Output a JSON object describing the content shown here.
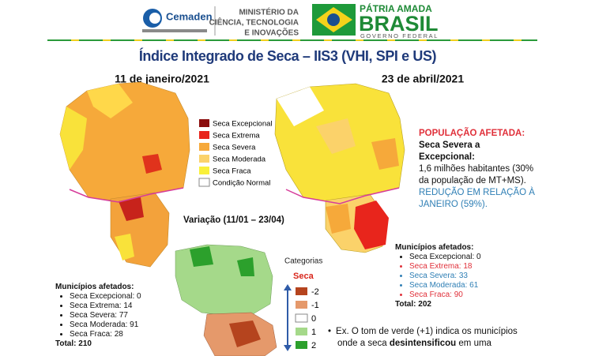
{
  "header": {
    "logo": "Cemaden",
    "ministry": [
      "MINISTÉRIO DA",
      "CIÊNCIA, TECNOLOGIA",
      "E INOVAÇÕES"
    ],
    "slogan": "PÁTRIA AMADA",
    "country": "BRASIL",
    "government": "GOVERNO FEDERAL"
  },
  "title": "Índice Integrado de Seca – IIS3 (VHI, SPI e US)",
  "left_date": "11 de janeiro/2021",
  "right_date": "23 de abril/2021",
  "legend": [
    "Seca Excepcional",
    "Seca Extrema",
    "Seca Severa",
    "Seca Moderada",
    "Seca Fraca",
    "Condição Normal"
  ],
  "variation_title": "Variação (11/01 – 23/04)",
  "categories": {
    "title": "Categorias",
    "axis": "Seca",
    "items": [
      "-2",
      "-1",
      "0",
      "1",
      "2"
    ]
  },
  "population": {
    "heading": "POPULAÇÃO AFETADA:",
    "subheading": "Seca Severa a Excepcional:",
    "text": "1,6 milhões habitantes (30% da população de MT+MS).",
    "highlight": "REDUÇÃO EM RELAÇÃO À JANEIRO (59%)."
  },
  "left_municipalities": {
    "title": "Municípios afetados:",
    "items": [
      "Seca Excepcional: 0",
      "Seca Extrema: 14",
      "Seca Severa: 77",
      "Seca Moderada: 91",
      "Seca Fraca: 28"
    ],
    "total": "Total: 210"
  },
  "right_municipalities": {
    "title": "Municípios afetados:",
    "items": [
      "Seca Excepcional: 0",
      "Seca Extrema: 18",
      "Seca Severa: 33",
      "Seca Moderada: 61",
      "Seca Fraca: 90"
    ],
    "total": "Total: 202"
  },
  "note": {
    "line1": "Ex. O tom de verde (+1) indica os municípios",
    "line2_start": "onde a seca ",
    "line2_bold": "desintensificou",
    "line2_end": " em uma"
  }
}
